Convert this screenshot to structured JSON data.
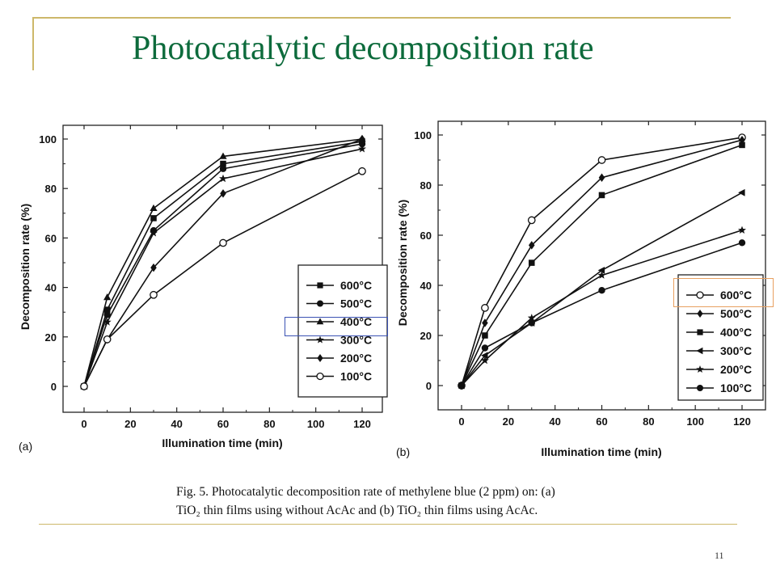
{
  "slide": {
    "title": "Photocatalytic decomposition rate",
    "page_number": "11",
    "colors": {
      "title": "#0d6b3c",
      "frame": "#cdb86a",
      "highlight_a": "#3b52b4",
      "highlight_b": "#e8a060"
    }
  },
  "caption": {
    "line1": "Fig. 5.  Photocatalytic decomposition rate of methylene blue (2 ppm) on: (a)",
    "line2": "TiO₂ thin films using without AcAc and (b) TiO₂ thin films using AcAc."
  },
  "chart_data": [
    {
      "type": "line",
      "panel_label": "(a)",
      "xlabel": "Illumination time (min)",
      "ylabel": "Decomposition rate (%)",
      "xlim": [
        -10,
        128
      ],
      "ylim": [
        -10,
        102
      ],
      "xticks": [
        0,
        20,
        40,
        60,
        80,
        100,
        120
      ],
      "yticks": [
        0,
        20,
        40,
        60,
        80,
        100
      ],
      "legend_position": "lower-right",
      "x": [
        0,
        10,
        30,
        60,
        120
      ],
      "series": [
        {
          "name": "600°C",
          "marker": "square",
          "values": [
            0,
            31,
            68,
            90,
            99
          ]
        },
        {
          "name": "500°C",
          "marker": "circle",
          "values": [
            0,
            29,
            63,
            88,
            98
          ]
        },
        {
          "name": "400°C",
          "marker": "triangle",
          "values": [
            0,
            36,
            72,
            93,
            100
          ]
        },
        {
          "name": "300°C",
          "marker": "star",
          "values": [
            0,
            26,
            62,
            84,
            96
          ]
        },
        {
          "name": "200°C",
          "marker": "diamond",
          "values": [
            0,
            19,
            48,
            78,
            100
          ]
        },
        {
          "name": "100°C",
          "marker": "open-circle",
          "values": [
            0,
            19,
            37,
            58,
            87
          ]
        }
      ]
    },
    {
      "type": "line",
      "panel_label": "(b)",
      "xlabel": "Illumination time (min)",
      "ylabel": "Decomposition rate (%)",
      "xlim": [
        -10,
        128
      ],
      "ylim": [
        -10,
        101
      ],
      "xticks": [
        0,
        20,
        40,
        60,
        80,
        100,
        120
      ],
      "yticks": [
        0,
        20,
        40,
        60,
        80,
        100
      ],
      "legend_position": "lower-right",
      "x": [
        0,
        10,
        30,
        60,
        120
      ],
      "series": [
        {
          "name": "600°C",
          "marker": "open-circle",
          "values": [
            0,
            31,
            66,
            90,
            99
          ]
        },
        {
          "name": "500°C",
          "marker": "diamond",
          "values": [
            0,
            25,
            56,
            83,
            98
          ]
        },
        {
          "name": "400°C",
          "marker": "square",
          "values": [
            0,
            20,
            49,
            76,
            96
          ]
        },
        {
          "name": "300°C",
          "marker": "triangle-left",
          "values": [
            0,
            12,
            25,
            46,
            77
          ]
        },
        {
          "name": "200°C",
          "marker": "star",
          "values": [
            0,
            10,
            27,
            44,
            62
          ]
        },
        {
          "name": "100°C",
          "marker": "circle",
          "values": [
            0,
            15,
            25,
            38,
            57
          ]
        }
      ]
    }
  ]
}
